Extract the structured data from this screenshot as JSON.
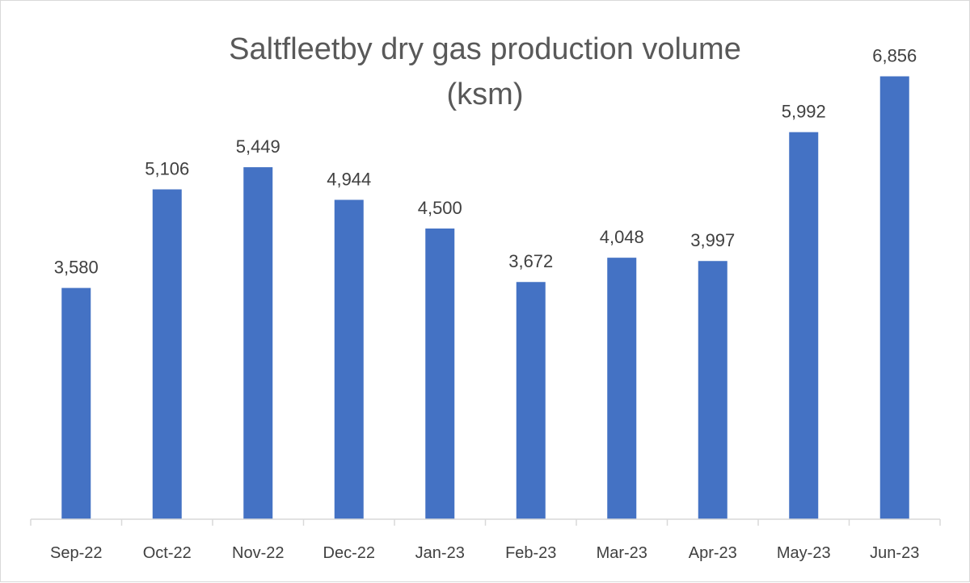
{
  "chart_data": {
    "type": "bar",
    "title_lines": [
      "Saltfleetby dry gas production volume",
      "(ksm)"
    ],
    "title": "Saltfleetby dry gas production volume (ksm)",
    "categories": [
      "Sep-22",
      "Oct-22",
      "Nov-22",
      "Dec-22",
      "Jan-23",
      "Feb-23",
      "Mar-23",
      "Apr-23",
      "May-23",
      "Jun-23"
    ],
    "values": [
      3580,
      5106,
      5449,
      4944,
      4500,
      3672,
      4048,
      3997,
      5992,
      6856
    ],
    "value_labels": [
      "3,580",
      "5,106",
      "5,449",
      "4,944",
      "4,500",
      "3,672",
      "4,048",
      "3,997",
      "5,992",
      "6,856"
    ],
    "xlabel": "",
    "ylabel": "",
    "ylim": [
      0,
      7500
    ],
    "grid": false,
    "legend": "none",
    "bar_color": "#4472c4",
    "axis_color": "#d9d9d9"
  }
}
